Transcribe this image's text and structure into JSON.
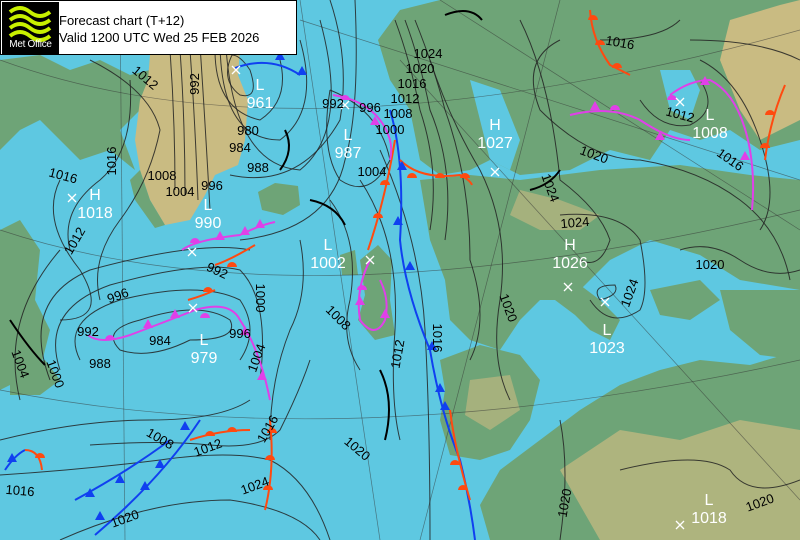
{
  "header": {
    "logo_text": "Met Office",
    "title": "Forecast chart (T+12)",
    "valid": "Valid 1200 UTC Wed 25 FEB 2026"
  },
  "colors": {
    "sea": "#5ec8e1",
    "land": "#6ea477",
    "highland": "#c9bb82",
    "cold_front": "#1040f0",
    "warm_front": "#ff4a10",
    "occluded_front": "#e040e8",
    "isobar": "#222222"
  },
  "pressure_centres": [
    {
      "type": "L",
      "value": "961"
    },
    {
      "type": "L",
      "value": "987"
    },
    {
      "type": "H",
      "value": "1027"
    },
    {
      "type": "L",
      "value": "1008"
    },
    {
      "type": "H",
      "value": "1018"
    },
    {
      "type": "L",
      "value": "990"
    },
    {
      "type": "L",
      "value": "1002"
    },
    {
      "type": "H",
      "value": "1026"
    },
    {
      "type": "L",
      "value": "1023"
    },
    {
      "type": "L",
      "value": "979"
    },
    {
      "type": "L",
      "value": "1018"
    }
  ],
  "isobar_labels": [
    "1012",
    "992",
    "1016",
    "1016",
    "1012",
    "1008",
    "1004",
    "996",
    "980",
    "984",
    "988",
    "992",
    "996",
    "1000",
    "1004",
    "992",
    "996",
    "992",
    "988",
    "984",
    "996",
    "1004",
    "1000",
    "1008",
    "1012",
    "1016",
    "1024",
    "1020",
    "1016",
    "1012",
    "1008",
    "1016",
    "1012",
    "1020",
    "1024",
    "1024",
    "1020",
    "1016",
    "1024",
    "1020",
    "1000",
    "1004",
    "1008",
    "1012",
    "1016",
    "1016",
    "1020",
    "1024",
    "1020",
    "1020",
    "1020"
  ]
}
